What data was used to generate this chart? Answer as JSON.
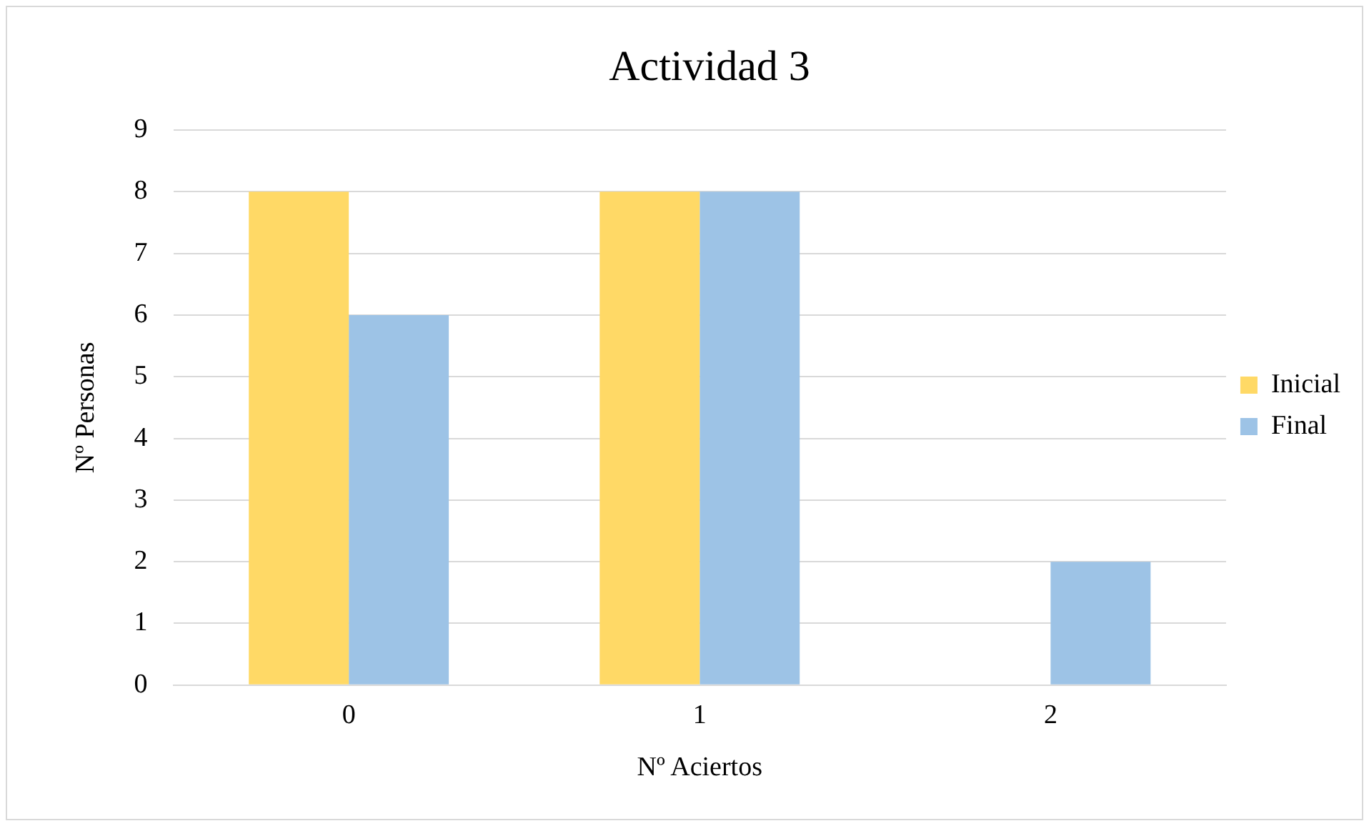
{
  "chart_data": {
    "type": "bar",
    "title": "Actividad 3",
    "xlabel": "Nº Aciertos",
    "ylabel": "Nº Personas",
    "categories": [
      "0",
      "1",
      "2"
    ],
    "series": [
      {
        "name": "Inicial",
        "color": "#ffd966",
        "values": [
          8,
          8,
          0
        ]
      },
      {
        "name": "Final",
        "color": "#9dc3e6",
        "values": [
          6,
          8,
          2
        ]
      }
    ],
    "ylim": [
      0,
      9
    ],
    "yticks": [
      0,
      1,
      2,
      3,
      4,
      5,
      6,
      7,
      8,
      9
    ],
    "grid": "y",
    "legend": "right"
  }
}
